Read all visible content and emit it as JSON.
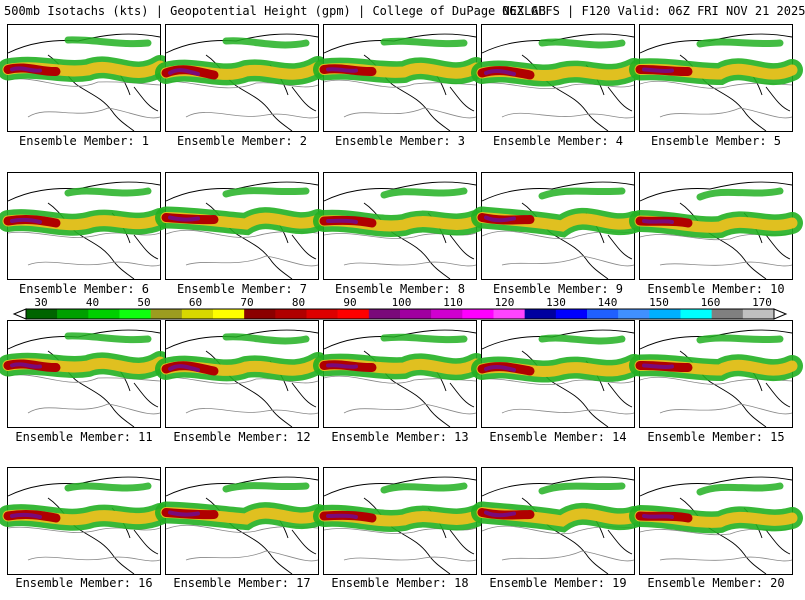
{
  "header": {
    "title": "500mb Isotachs (kts) | Geopotential Height (gpm) | College of DuPage NEXLAB",
    "run": "06Z GEFS | F120 Valid: 06Z FRI NOV 21 2025"
  },
  "caption_prefix": "Ensemble Member: ",
  "members": [
    {
      "label": "Ensemble Member: 1"
    },
    {
      "label": "Ensemble Member: 2"
    },
    {
      "label": "Ensemble Member: 3"
    },
    {
      "label": "Ensemble Member: 4"
    },
    {
      "label": "Ensemble Member: 5"
    },
    {
      "label": "Ensemble Member: 6"
    },
    {
      "label": "Ensemble Member: 7"
    },
    {
      "label": "Ensemble Member: 8"
    },
    {
      "label": "Ensemble Member: 9"
    },
    {
      "label": "Ensemble Member: 10"
    },
    {
      "label": "Ensemble Member: 11"
    },
    {
      "label": "Ensemble Member: 12"
    },
    {
      "label": "Ensemble Member: 13"
    },
    {
      "label": "Ensemble Member: 14"
    },
    {
      "label": "Ensemble Member: 15"
    },
    {
      "label": "Ensemble Member: 16"
    },
    {
      "label": "Ensemble Member: 17"
    },
    {
      "label": "Ensemble Member: 18"
    },
    {
      "label": "Ensemble Member: 19"
    },
    {
      "label": "Ensemble Member: 20"
    }
  ],
  "colorbar": {
    "labels": [
      "30",
      "40",
      "50",
      "60",
      "70",
      "80",
      "90",
      "100",
      "110",
      "120",
      "130",
      "140",
      "150",
      "160",
      "170"
    ],
    "colors": [
      "#006400",
      "#00a000",
      "#00d000",
      "#10ff10",
      "#9c9c20",
      "#d8d800",
      "#ffff00",
      "#8b0000",
      "#b00000",
      "#dd0000",
      "#ff0000",
      "#7a0a7a",
      "#a000a0",
      "#d000d0",
      "#ff00ff",
      "#ff44ff",
      "#0000a0",
      "#0000ff",
      "#2060ff",
      "#4090ff",
      "#00b0ff",
      "#00ffff",
      "#808080",
      "#c0c0c0"
    ]
  },
  "colors": {
    "land": "#ffffff",
    "jet_low": "#22b022",
    "jet_mid": "#e0c020",
    "jet_high": "#b00000",
    "jet_core": "#7a0a7a"
  }
}
